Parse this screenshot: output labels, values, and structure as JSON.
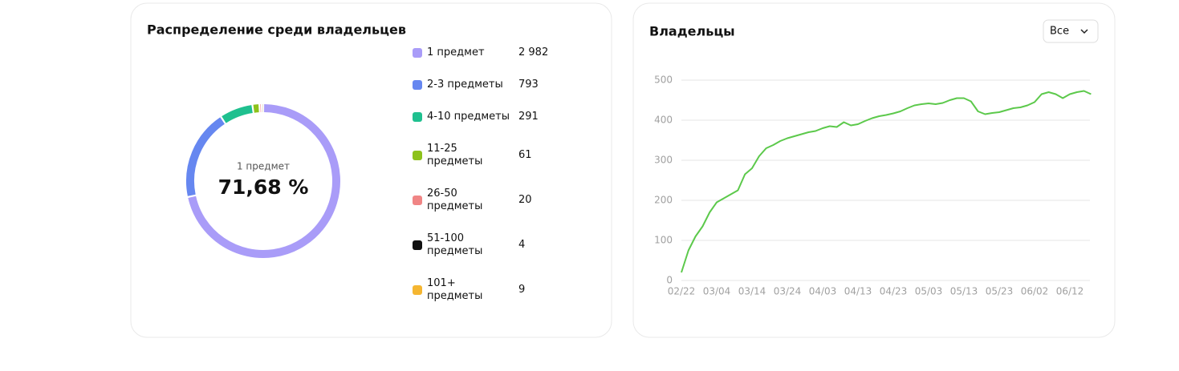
{
  "chart_data": [
    {
      "type": "donut",
      "title": "Распределение среди владельцев",
      "categories": [
        "1 предмет",
        "2-3 предметы",
        "4-10 предметы",
        "11-25 предметы",
        "26-50 предметы",
        "51-100 предметы",
        "101+ предметы"
      ],
      "values": [
        2982,
        793,
        291,
        61,
        20,
        4,
        9
      ],
      "value_labels": [
        "2 982",
        "793",
        "291",
        "61",
        "20",
        "4",
        "9"
      ],
      "colors": [
        "#a99cf8",
        "#6687f0",
        "#1fc08f",
        "#8dc21b",
        "#f08585",
        "#111111",
        "#f5b631"
      ],
      "center_label": {
        "value": 71.68,
        "label": "71,68 %"
      }
    },
    {
      "type": "line",
      "title": "Владельцы",
      "color": "#5cc94b",
      "categories": [
        "02/22",
        null,
        null,
        null,
        null,
        "03/04",
        null,
        null,
        null,
        null,
        "03/14",
        null,
        null,
        null,
        null,
        "03/24",
        null,
        null,
        null,
        null,
        "04/03",
        null,
        null,
        null,
        null,
        "04/13",
        null,
        null,
        null,
        null,
        "04/23",
        null,
        null,
        null,
        null,
        "05/03",
        null,
        null,
        null,
        null,
        "05/13",
        null,
        null,
        null,
        null,
        "05/23",
        null,
        null,
        null,
        null,
        "06/02",
        null,
        null,
        null,
        null,
        "06/12",
        null,
        null,
        null
      ],
      "values": [
        20,
        75,
        110,
        135,
        170,
        195,
        205,
        215,
        225,
        265,
        280,
        310,
        330,
        338,
        348,
        355,
        360,
        365,
        370,
        373,
        380,
        385,
        383,
        395,
        387,
        390,
        398,
        405,
        410,
        413,
        417,
        422,
        430,
        437,
        440,
        442,
        440,
        443,
        450,
        455,
        455,
        447,
        422,
        415,
        418,
        420,
        425,
        430,
        432,
        437,
        445,
        465,
        470,
        465,
        455,
        465,
        470,
        473,
        465
      ],
      "ylim": [
        0,
        500
      ],
      "yticks": [
        0,
        100,
        200,
        300,
        400,
        500
      ],
      "grid": true
    }
  ],
  "controls": {
    "period_select": "Все"
  }
}
